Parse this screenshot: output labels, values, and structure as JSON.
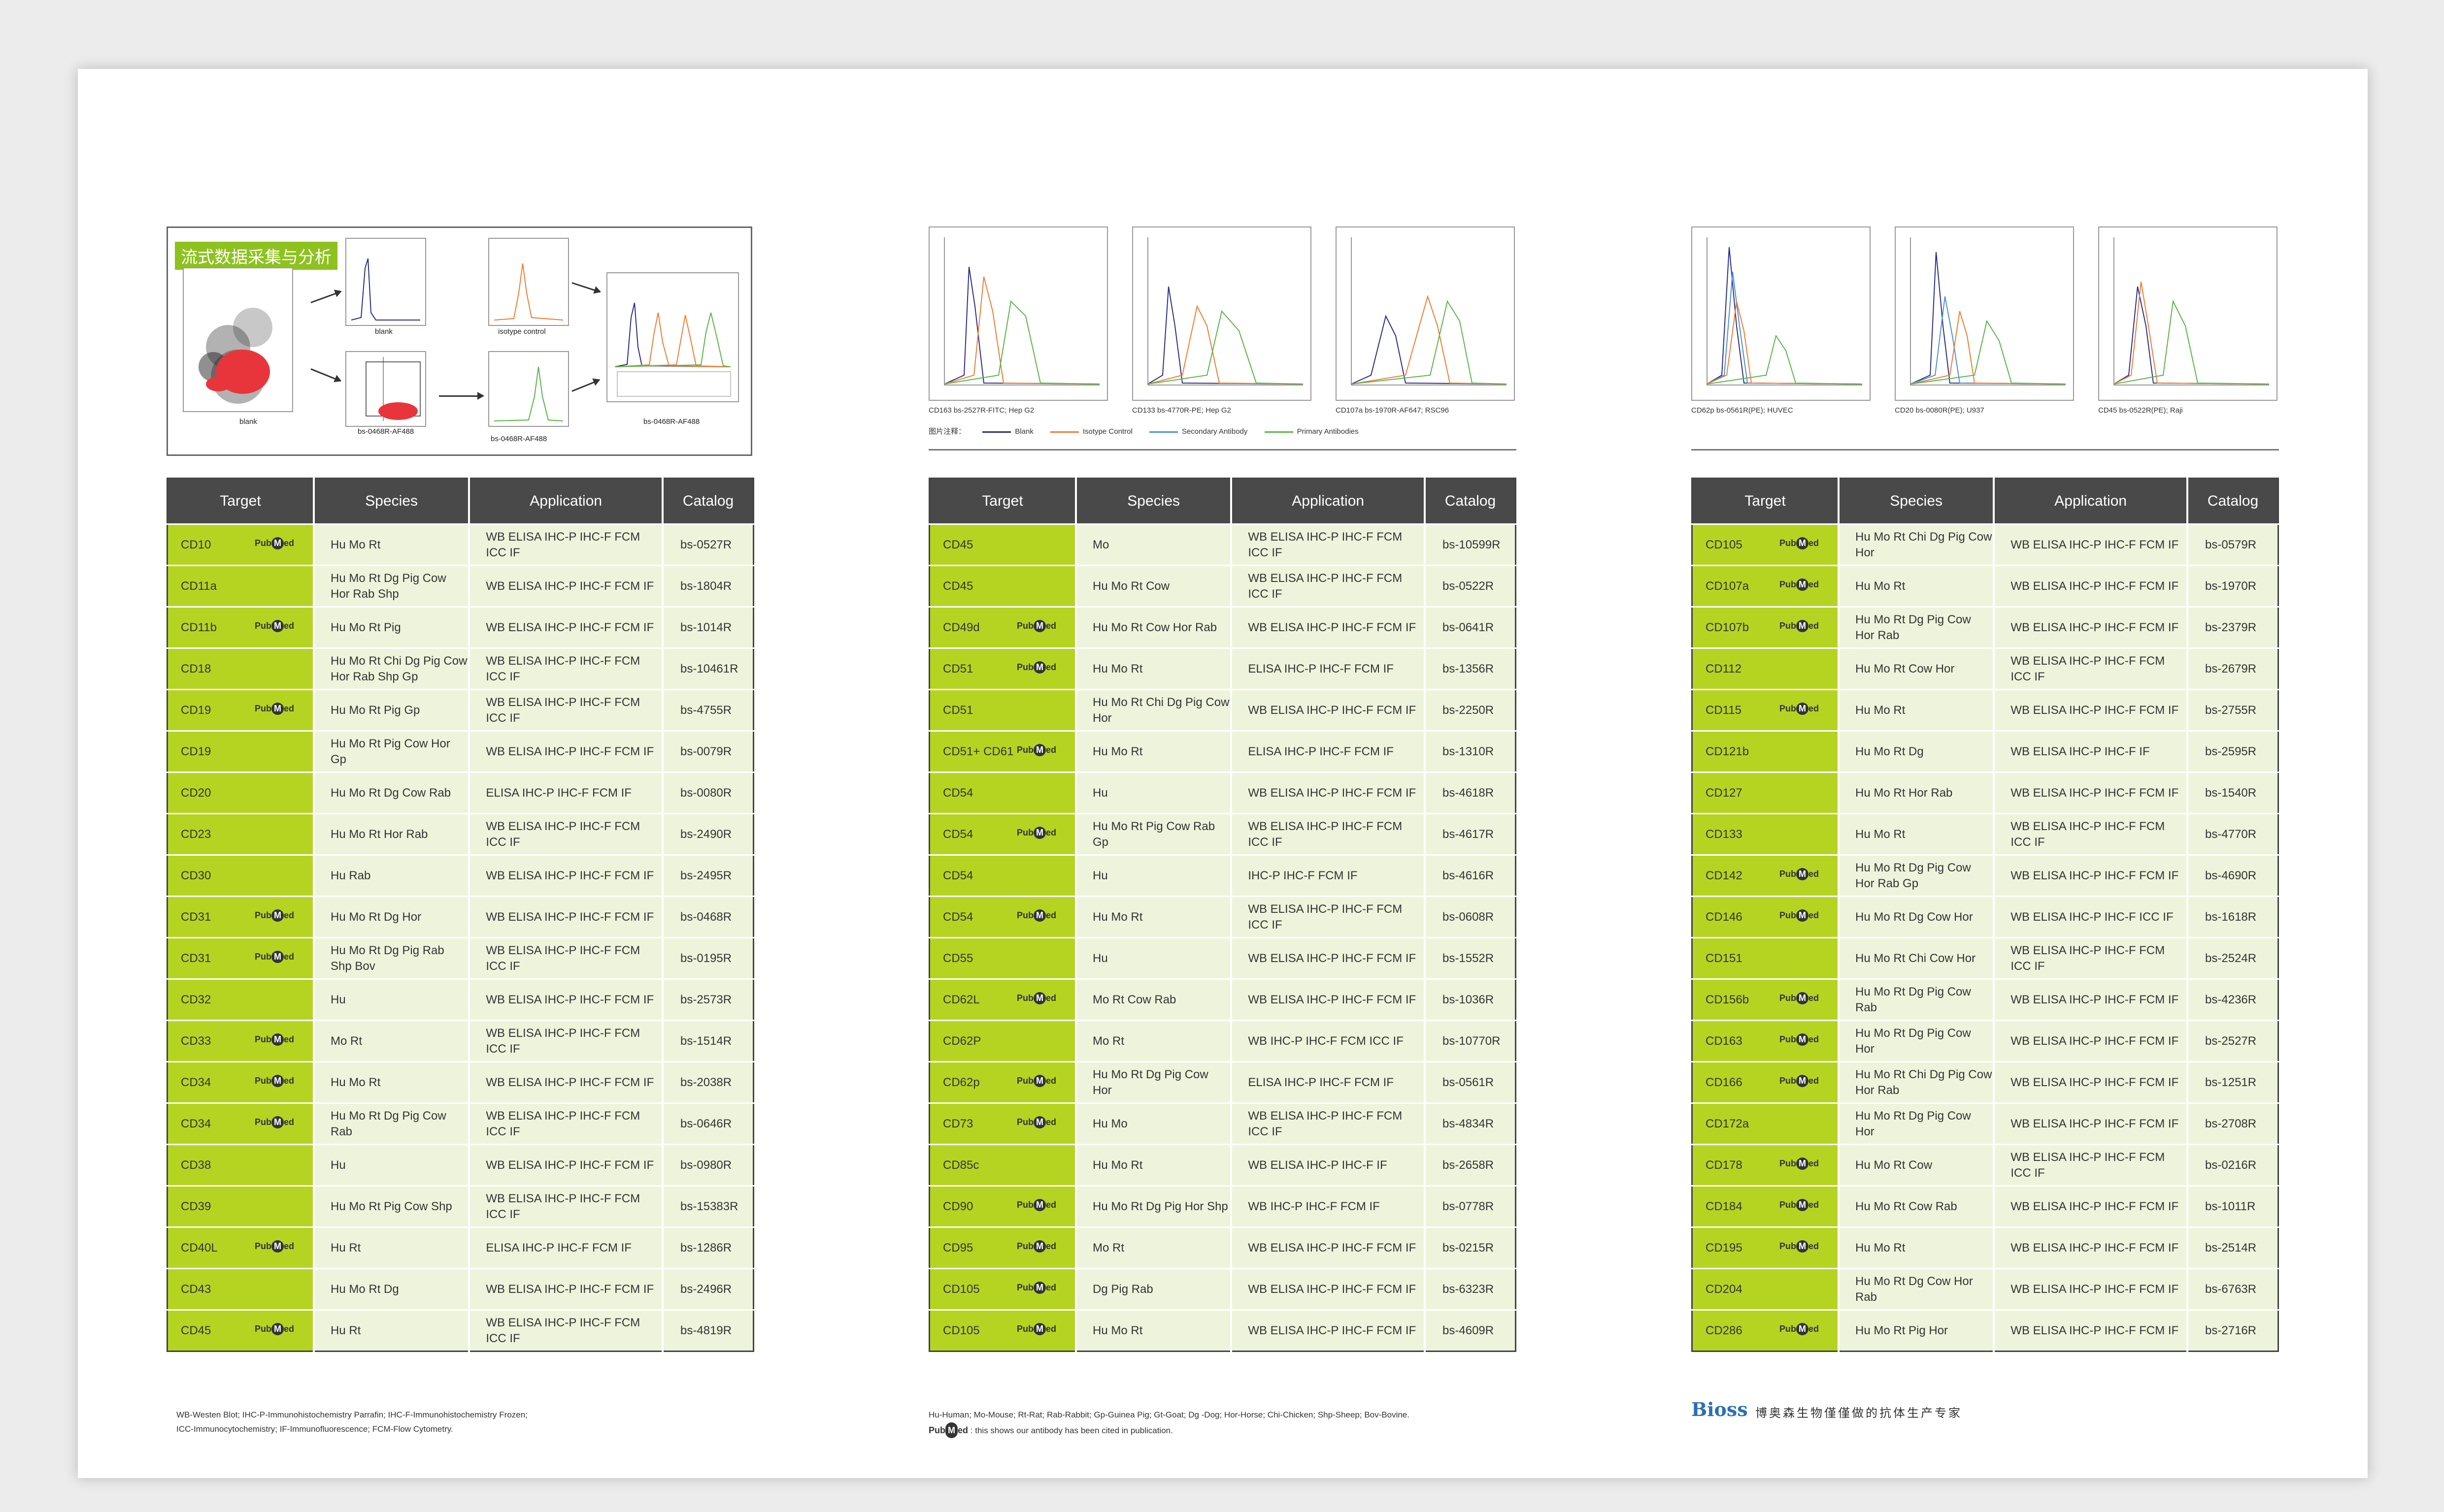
{
  "pages": [
    {
      "flow_title": "流式数据采集与分析",
      "flow_labels": {
        "blank1": "blank",
        "blank2": "blank",
        "isotype": "isotype control",
        "ab1": "bs-0468R-AF488",
        "ab2": "bs-0468R-AF488",
        "ab3": "bs-0468R-AF488"
      },
      "headers": [
        "Target",
        "Species",
        "Application",
        "Catalog"
      ],
      "rows": [
        {
          "target": "CD10",
          "pubmed": true,
          "species": "Hu Mo Rt",
          "application": "WB ELISA IHC-P IHC-F FCM ICC IF",
          "catalog": "bs-0527R"
        },
        {
          "target": "CD11a",
          "pubmed": false,
          "species": "Hu Mo Rt Dg Pig Cow Hor Rab Shp",
          "application": "WB ELISA IHC-P IHC-F FCM IF",
          "catalog": "bs-1804R"
        },
        {
          "target": "CD11b",
          "pubmed": true,
          "species": "Hu Mo Rt Pig",
          "application": "WB ELISA IHC-P IHC-F FCM IF",
          "catalog": "bs-1014R"
        },
        {
          "target": "CD18",
          "pubmed": false,
          "species": "Hu Mo Rt Chi Dg Pig Cow Hor Rab Shp Gp",
          "application": "WB ELISA IHC-P IHC-F FCM ICC IF",
          "catalog": "bs-10461R"
        },
        {
          "target": "CD19",
          "pubmed": true,
          "species": "Hu Mo Rt Pig Gp",
          "application": "WB ELISA IHC-P IHC-F FCM ICC IF",
          "catalog": "bs-4755R"
        },
        {
          "target": "CD19",
          "pubmed": false,
          "species": "Hu Mo Rt Pig Cow Hor Gp",
          "application": "WB ELISA IHC-P IHC-F FCM IF",
          "catalog": "bs-0079R"
        },
        {
          "target": "CD20",
          "pubmed": false,
          "species": "Hu Mo Rt Dg Cow Rab",
          "application": "ELISA IHC-P IHC-F FCM IF",
          "catalog": "bs-0080R"
        },
        {
          "target": "CD23",
          "pubmed": false,
          "species": "Hu Mo Rt Hor Rab",
          "application": "WB ELISA IHC-P IHC-F FCM ICC IF",
          "catalog": "bs-2490R"
        },
        {
          "target": "CD30",
          "pubmed": false,
          "species": "Hu Rab",
          "application": "WB ELISA IHC-P IHC-F FCM IF",
          "catalog": "bs-2495R"
        },
        {
          "target": "CD31",
          "pubmed": true,
          "species": "Hu Mo Rt Dg Hor",
          "application": "WB ELISA IHC-P IHC-F FCM IF",
          "catalog": "bs-0468R"
        },
        {
          "target": "CD31",
          "pubmed": true,
          "species": "Hu Mo Rt Dg Pig Rab Shp Bov",
          "application": "WB ELISA IHC-P IHC-F FCM ICC IF",
          "catalog": "bs-0195R"
        },
        {
          "target": "CD32",
          "pubmed": false,
          "species": "Hu",
          "application": "WB ELISA IHC-P IHC-F FCM IF",
          "catalog": "bs-2573R"
        },
        {
          "target": "CD33",
          "pubmed": true,
          "species": "Mo Rt",
          "application": "WB ELISA IHC-P IHC-F FCM ICC IF",
          "catalog": "bs-1514R"
        },
        {
          "target": "CD34",
          "pubmed": true,
          "species": "Hu Mo Rt",
          "application": "WB ELISA IHC-P IHC-F FCM IF",
          "catalog": "bs-2038R"
        },
        {
          "target": "CD34",
          "pubmed": true,
          "species": "Hu Mo Rt Dg Pig Cow Rab",
          "application": "WB ELISA IHC-P IHC-F FCM ICC IF",
          "catalog": "bs-0646R"
        },
        {
          "target": "CD38",
          "pubmed": false,
          "species": "Hu",
          "application": "WB ELISA IHC-P IHC-F FCM IF",
          "catalog": "bs-0980R"
        },
        {
          "target": "CD39",
          "pubmed": false,
          "species": "Hu Mo Rt Pig Cow Shp",
          "application": "WB ELISA IHC-P IHC-F FCM ICC IF",
          "catalog": "bs-15383R"
        },
        {
          "target": "CD40L",
          "pubmed": true,
          "species": "Hu Rt",
          "application": "ELISA IHC-P IHC-F FCM IF",
          "catalog": "bs-1286R"
        },
        {
          "target": "CD43",
          "pubmed": false,
          "species": "Hu Mo Rt Dg",
          "application": "WB ELISA IHC-P IHC-F FCM IF",
          "catalog": "bs-2496R"
        },
        {
          "target": "CD45",
          "pubmed": true,
          "species": "Hu Rt",
          "application": "WB ELISA IHC-P IHC-F FCM ICC IF",
          "catalog": "bs-4819R"
        }
      ],
      "footer": [
        "WB-Westen Blot; IHC-P-Immunohistochemistry Parrafin; IHC-F-Immunohistochemistry Frozen;",
        "ICC-Immunocytochemistry; IF-Immunofluorescence; FCM-Flow Cytometry."
      ]
    },
    {
      "captions": [
        "CD163  bs-2527R-FITC; Hep G2",
        "CD133  bs-4770R-PE; Hep G2",
        "CD107a  bs-1970R-AF647; RSC96"
      ],
      "legend_title": "图片注释：",
      "legend": [
        {
          "label": "Blank",
          "color": "#2b2b8c"
        },
        {
          "label": "Isotype Control",
          "color": "#ee7d31"
        },
        {
          "label": "Secondary Antibody",
          "color": "#4a8fd6"
        },
        {
          "label": "Primary Antibodies",
          "color": "#59b645"
        }
      ],
      "headers": [
        "Target",
        "Species",
        "Application",
        "Catalog"
      ],
      "rows": [
        {
          "target": "CD45",
          "pubmed": false,
          "species": "Mo",
          "application": "WB ELISA IHC-P IHC-F FCM ICC IF",
          "catalog": "bs-10599R"
        },
        {
          "target": "CD45",
          "pubmed": false,
          "species": "Hu Mo Rt Cow",
          "application": "WB ELISA IHC-P IHC-F FCM ICC IF",
          "catalog": "bs-0522R"
        },
        {
          "target": "CD49d",
          "pubmed": true,
          "species": "Hu Mo Rt Cow Hor Rab",
          "application": "WB ELISA IHC-P IHC-F FCM IF",
          "catalog": "bs-0641R"
        },
        {
          "target": "CD51",
          "pubmed": true,
          "species": "Hu Mo Rt",
          "application": "ELISA IHC-P IHC-F FCM IF",
          "catalog": "bs-1356R"
        },
        {
          "target": "CD51",
          "pubmed": false,
          "species": "Hu Mo Rt Chi Dg Pig Cow Hor",
          "application": "WB ELISA IHC-P IHC-F FCM IF",
          "catalog": "bs-2250R"
        },
        {
          "target": "CD51+ CD61",
          "pubmed": true,
          "species": "Hu Mo Rt",
          "application": "ELISA IHC-P IHC-F FCM IF",
          "catalog": "bs-1310R"
        },
        {
          "target": "CD54",
          "pubmed": false,
          "species": "Hu",
          "application": "WB ELISA IHC-P IHC-F FCM IF",
          "catalog": "bs-4618R"
        },
        {
          "target": "CD54",
          "pubmed": true,
          "species": "Hu Mo Rt Pig Cow Rab Gp",
          "application": "WB ELISA IHC-P IHC-F FCM ICC IF",
          "catalog": "bs-4617R"
        },
        {
          "target": "CD54",
          "pubmed": false,
          "species": "Hu",
          "application": "IHC-P IHC-F FCM IF",
          "catalog": "bs-4616R"
        },
        {
          "target": "CD54",
          "pubmed": true,
          "species": "Hu Mo Rt",
          "application": "WB ELISA IHC-P IHC-F FCM ICC IF",
          "catalog": "bs-0608R"
        },
        {
          "target": "CD55",
          "pubmed": false,
          "species": "Hu",
          "application": "WB ELISA IHC-P IHC-F FCM IF",
          "catalog": "bs-1552R"
        },
        {
          "target": "CD62L",
          "pubmed": true,
          "species": "Mo Rt Cow Rab",
          "application": "WB ELISA IHC-P IHC-F FCM IF",
          "catalog": "bs-1036R"
        },
        {
          "target": "CD62P",
          "pubmed": false,
          "species": "Mo Rt",
          "application": "WB IHC-P IHC-F FCM ICC IF",
          "catalog": "bs-10770R"
        },
        {
          "target": "CD62p",
          "pubmed": true,
          "species": "Hu Mo Rt Dg Pig Cow Hor",
          "application": "ELISA IHC-P IHC-F FCM IF",
          "catalog": "bs-0561R"
        },
        {
          "target": "CD73",
          "pubmed": true,
          "species": "Hu Mo",
          "application": "WB ELISA IHC-P IHC-F FCM ICC IF",
          "catalog": "bs-4834R"
        },
        {
          "target": "CD85c",
          "pubmed": false,
          "species": "Hu Mo Rt",
          "application": "WB ELISA IHC-P IHC-F IF",
          "catalog": "bs-2658R"
        },
        {
          "target": "CD90",
          "pubmed": true,
          "species": "Hu Mo Rt Dg Pig Hor Shp",
          "application": "WB IHC-P IHC-F FCM IF",
          "catalog": "bs-0778R"
        },
        {
          "target": "CD95",
          "pubmed": true,
          "species": "Mo Rt",
          "application": "WB ELISA IHC-P IHC-F FCM IF",
          "catalog": "bs-0215R"
        },
        {
          "target": "CD105",
          "pubmed": true,
          "species": "Dg Pig Rab",
          "application": "WB ELISA IHC-P IHC-F FCM IF",
          "catalog": "bs-6323R"
        },
        {
          "target": "CD105",
          "pubmed": true,
          "species": "Hu Mo Rt",
          "application": "WB ELISA IHC-P IHC-F FCM IF",
          "catalog": "bs-4609R"
        }
      ],
      "footer": [
        "Hu-Human; Mo-Mouse; Rt-Rat; Rab-Rabbit; Gp-Guinea Pig; Gt-Goat; Dg -Dog; Hor-Horse; Chi-Chicken; Shp-Sheep; Bov-Bovine.",
        ": this shows our antibody has been cited in publication."
      ]
    },
    {
      "captions": [
        "CD62p  bs-0561R(PE); HUVEC",
        "CD20  bs-0080R(PE); U937",
        "CD45  bs-0522R(PE); Raji"
      ],
      "headers": [
        "Target",
        "Species",
        "Application",
        "Catalog"
      ],
      "rows": [
        {
          "target": "CD105",
          "pubmed": true,
          "species": "Hu Mo Rt Chi Dg Pig Cow Hor",
          "application": "WB ELISA IHC-P IHC-F FCM IF",
          "catalog": "bs-0579R"
        },
        {
          "target": "CD107a",
          "pubmed": true,
          "species": "Hu Mo Rt",
          "application": "WB ELISA IHC-P IHC-F FCM IF",
          "catalog": "bs-1970R"
        },
        {
          "target": "CD107b",
          "pubmed": true,
          "species": "Hu Mo Rt Dg Pig Cow Hor Rab",
          "application": "WB ELISA IHC-P IHC-F FCM IF",
          "catalog": "bs-2379R"
        },
        {
          "target": "CD112",
          "pubmed": false,
          "species": "Hu Mo Rt Cow Hor",
          "application": "WB ELISA IHC-P IHC-F FCM ICC IF",
          "catalog": "bs-2679R"
        },
        {
          "target": "CD115",
          "pubmed": true,
          "species": "Hu Mo Rt",
          "application": "WB ELISA IHC-P IHC-F FCM IF",
          "catalog": "bs-2755R"
        },
        {
          "target": "CD121b",
          "pubmed": false,
          "species": "Hu Mo Rt Dg",
          "application": "WB ELISA IHC-P IHC-F IF",
          "catalog": "bs-2595R"
        },
        {
          "target": "CD127",
          "pubmed": false,
          "species": "Hu Mo Rt Hor Rab",
          "application": "WB ELISA IHC-P IHC-F FCM IF",
          "catalog": "bs-1540R"
        },
        {
          "target": "CD133",
          "pubmed": false,
          "species": "Hu Mo Rt",
          "application": "WB ELISA IHC-P IHC-F FCM ICC IF",
          "catalog": "bs-4770R"
        },
        {
          "target": "CD142",
          "pubmed": true,
          "species": "Hu Mo Rt Dg Pig Cow Hor Rab Gp",
          "application": "WB ELISA IHC-P IHC-F FCM IF",
          "catalog": "bs-4690R"
        },
        {
          "target": "CD146",
          "pubmed": true,
          "species": "Hu Mo Rt Dg Cow Hor",
          "application": "WB ELISA IHC-P IHC-F ICC IF",
          "catalog": "bs-1618R"
        },
        {
          "target": "CD151",
          "pubmed": false,
          "species": "Hu Mo Rt Chi Cow Hor",
          "application": "WB ELISA IHC-P IHC-F FCM ICC IF",
          "catalog": "bs-2524R"
        },
        {
          "target": "CD156b",
          "pubmed": true,
          "species": "Hu Mo Rt Dg Pig Cow Rab",
          "application": "WB ELISA IHC-P IHC-F FCM IF",
          "catalog": "bs-4236R"
        },
        {
          "target": "CD163",
          "pubmed": true,
          "species": "Hu Mo Rt Dg Pig Cow Hor",
          "application": "WB ELISA IHC-P IHC-F FCM IF",
          "catalog": "bs-2527R"
        },
        {
          "target": "CD166",
          "pubmed": true,
          "species": "Hu Mo Rt Chi Dg Pig Cow Hor Rab",
          "application": "WB ELISA IHC-P IHC-F FCM IF",
          "catalog": "bs-1251R"
        },
        {
          "target": "CD172a",
          "pubmed": false,
          "species": "Hu Mo Rt Dg Pig Cow Hor",
          "application": "WB ELISA IHC-P IHC-F FCM IF",
          "catalog": "bs-2708R"
        },
        {
          "target": "CD178",
          "pubmed": true,
          "species": "Hu Mo Rt Cow",
          "application": "WB ELISA IHC-P IHC-F FCM ICC IF",
          "catalog": "bs-0216R"
        },
        {
          "target": "CD184",
          "pubmed": true,
          "species": "Hu Mo Rt Cow Rab",
          "application": "WB ELISA IHC-P IHC-F FCM IF",
          "catalog": "bs-1011R"
        },
        {
          "target": "CD195",
          "pubmed": true,
          "species": "Hu Mo Rt",
          "application": "WB ELISA IHC-P IHC-F FCM IF",
          "catalog": "bs-2514R"
        },
        {
          "target": "CD204",
          "pubmed": false,
          "species": "Hu Mo Rt Dg Cow Hor Rab",
          "application": "WB ELISA IHC-P IHC-F FCM IF",
          "catalog": "bs-6763R"
        },
        {
          "target": "CD286",
          "pubmed": true,
          "species": "Hu Mo Rt Pig Hor",
          "application": "WB ELISA IHC-P IHC-F FCM IF",
          "catalog": "bs-2716R"
        }
      ],
      "logo": "Bioss",
      "slogan": "博奥森生物僅僅做的抗体生产专家"
    }
  ],
  "pubmed_badge": {
    "pre": "Pub",
    "mid": "M",
    "post": "ed"
  }
}
